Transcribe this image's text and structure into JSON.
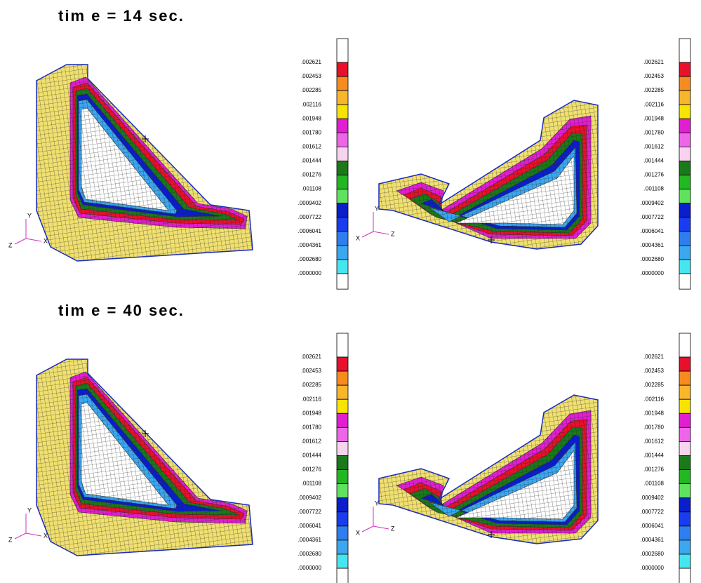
{
  "panels": [
    {
      "title": "tim e = 14 sec."
    },
    {
      "title": "tim e = 40 sec."
    }
  ],
  "legend": {
    "labels": [
      ".002621",
      ".002453",
      ".002285",
      ".002116",
      ".001948",
      ".001780",
      ".001612",
      ".001444",
      ".001276",
      ".001108",
      ".0009402",
      ".0007722",
      ".0006041",
      ".0004361",
      ".0002680",
      ".0000000"
    ],
    "colors": [
      "#e8102a",
      "#f78c1e",
      "#f9b62b",
      "#f7e400",
      "#e21ed2",
      "#ee66e8",
      "#f8d3f0",
      "#1a7a1a",
      "#22b822",
      "#5fe35f",
      "#0a1ecc",
      "#1a3cf0",
      "#2e7ef0",
      "#3aa7f0",
      "#46e6f0"
    ]
  },
  "triads": {
    "left": {
      "y": "Y",
      "z": "Z",
      "x": "X"
    },
    "right": {
      "y": "Y",
      "x": "X",
      "z": "Z"
    }
  }
}
